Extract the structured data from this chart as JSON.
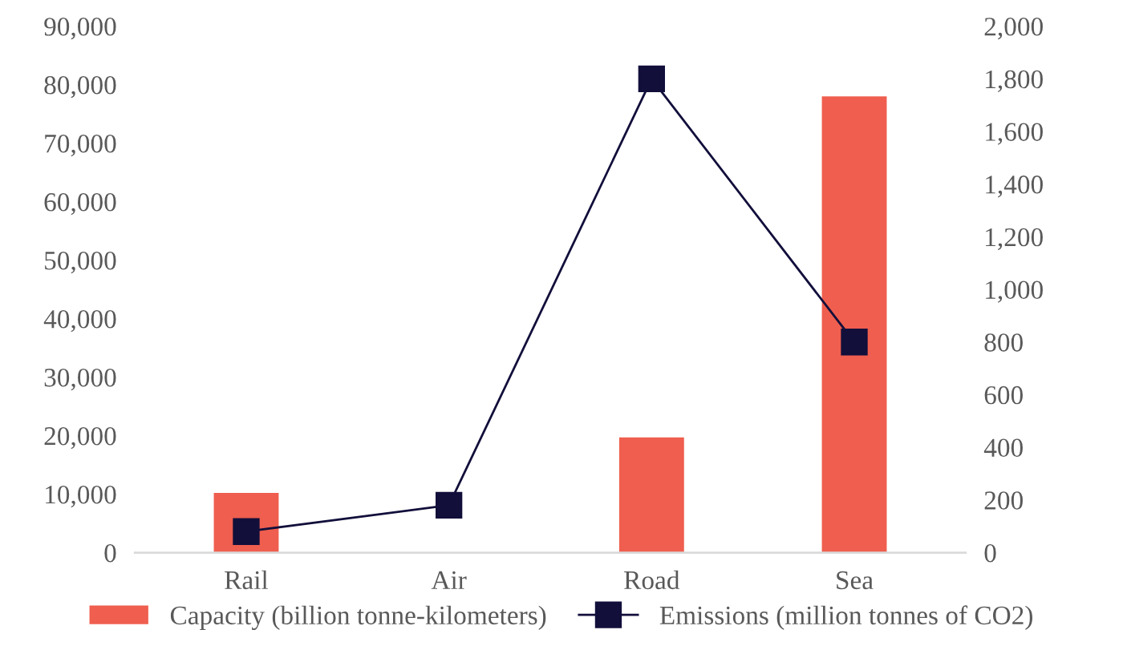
{
  "chart_data": {
    "type": "bar",
    "categories": [
      "Rail",
      "Air",
      "Road",
      "Sea"
    ],
    "series": [
      {
        "name": "Capacity (billion tonne-kilometers)",
        "color": "#ef5e4e",
        "values": [
          10200,
          null,
          19700,
          78000
        ]
      },
      {
        "name": "Emissions (million tonnes of CO2)",
        "type": "line",
        "axis": "y2",
        "color": "#120f3b",
        "marker": "square",
        "values": [
          80,
          180,
          1800,
          800
        ]
      }
    ],
    "ylim": [
      0,
      90000
    ],
    "yticks": [
      {
        "value": 0,
        "label": "0"
      },
      {
        "value": 10000,
        "label": "10,000"
      },
      {
        "value": 20000,
        "label": "20,000"
      },
      {
        "value": 30000,
        "label": "30,000"
      },
      {
        "value": 40000,
        "label": "40,000"
      },
      {
        "value": 50000,
        "label": "50,000"
      },
      {
        "value": 60000,
        "label": "60,000"
      },
      {
        "value": 70000,
        "label": "70,000"
      },
      {
        "value": 80000,
        "label": "80,000"
      },
      {
        "value": 90000,
        "label": "90,000"
      }
    ],
    "y2lim": [
      0,
      2000
    ],
    "y2ticks": [
      0,
      200,
      400,
      600,
      800,
      {
        "value": 1000,
        "label": "1,000"
      },
      {
        "value": 1200,
        "label": "1,200"
      },
      {
        "value": 1400,
        "label": "1,400"
      },
      {
        "value": 1600,
        "label": "1,600"
      },
      {
        "value": 1800,
        "label": "1,800"
      },
      {
        "value": 2000,
        "label": "2,000"
      }
    ],
    "grid": false,
    "legend": "bottom"
  }
}
